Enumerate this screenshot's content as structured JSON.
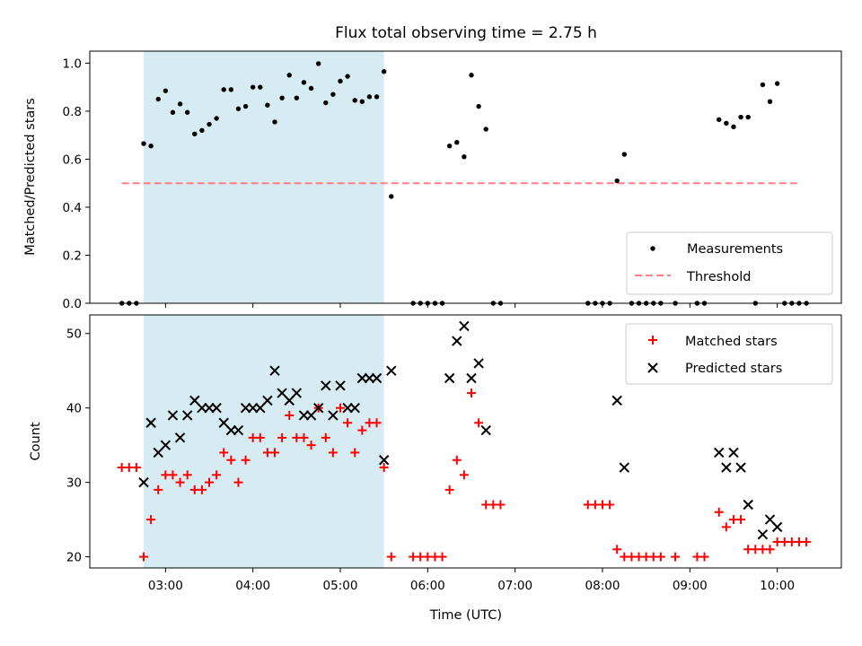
{
  "title": "Flux total observing time = 2.75 h",
  "colors": {
    "shade": "#add8e6",
    "measurement": "#000000",
    "threshold": "#ff8080",
    "matched": "#ff0000",
    "predicted": "#000000"
  },
  "chart_data": [
    {
      "type": "scatter",
      "ylabel": "Matched/Predicted stars",
      "xlim": [
        "02:08",
        "10:44"
      ],
      "ylim": [
        0,
        1.05
      ],
      "yticks": [
        "0.0",
        "0.2",
        "0.4",
        "0.6",
        "0.8",
        "1.0"
      ],
      "shaded_region": [
        "02:45",
        "05:30"
      ],
      "threshold": 0.5,
      "threshold_range": [
        "02:30",
        "10:15"
      ],
      "legend": {
        "position": "bottom-right",
        "measurements": "Measurements",
        "threshold": "Threshold"
      },
      "series": [
        {
          "name": "Measurements",
          "points": [
            [
              "02:30",
              0
            ],
            [
              "02:35",
              0
            ],
            [
              "02:40",
              0
            ],
            [
              "02:45",
              0.665
            ],
            [
              "02:50",
              0.655
            ],
            [
              "02:55",
              0.85
            ],
            [
              "03:00",
              0.885
            ],
            [
              "03:05",
              0.795
            ],
            [
              "03:10",
              0.83
            ],
            [
              "03:15",
              0.795
            ],
            [
              "03:20",
              0.705
            ],
            [
              "03:25",
              0.72
            ],
            [
              "03:30",
              0.745
            ],
            [
              "03:35",
              0.77
            ],
            [
              "03:40",
              0.89
            ],
            [
              "03:45",
              0.89
            ],
            [
              "03:50",
              0.81
            ],
            [
              "03:55",
              0.82
            ],
            [
              "04:00",
              0.9
            ],
            [
              "04:05",
              0.9
            ],
            [
              "04:10",
              0.825
            ],
            [
              "04:15",
              0.755
            ],
            [
              "04:20",
              0.855
            ],
            [
              "04:25",
              0.95
            ],
            [
              "04:30",
              0.855
            ],
            [
              "04:35",
              0.92
            ],
            [
              "04:40",
              0.895
            ],
            [
              "04:45",
              0.998
            ],
            [
              "04:50",
              0.835
            ],
            [
              "04:55",
              0.87
            ],
            [
              "05:00",
              0.925
            ],
            [
              "05:05",
              0.945
            ],
            [
              "05:10",
              0.845
            ],
            [
              "05:15",
              0.84
            ],
            [
              "05:20",
              0.86
            ],
            [
              "05:25",
              0.86
            ],
            [
              "05:30",
              0.965
            ],
            [
              "05:35",
              0.445
            ],
            [
              "05:50",
              0
            ],
            [
              "05:55",
              0
            ],
            [
              "06:00",
              0
            ],
            [
              "06:05",
              0
            ],
            [
              "06:10",
              0
            ],
            [
              "06:15",
              0.655
            ],
            [
              "06:20",
              0.67
            ],
            [
              "06:25",
              0.61
            ],
            [
              "06:30",
              0.95
            ],
            [
              "06:35",
              0.82
            ],
            [
              "06:40",
              0.725
            ],
            [
              "06:45",
              0
            ],
            [
              "06:50",
              0
            ],
            [
              "07:50",
              0
            ],
            [
              "07:55",
              0
            ],
            [
              "08:00",
              0
            ],
            [
              "08:05",
              0
            ],
            [
              "08:10",
              0.51
            ],
            [
              "08:15",
              0.62
            ],
            [
              "08:20",
              0
            ],
            [
              "08:25",
              0
            ],
            [
              "08:30",
              0
            ],
            [
              "08:35",
              0
            ],
            [
              "08:40",
              0
            ],
            [
              "08:50",
              0
            ],
            [
              "09:05",
              0
            ],
            [
              "09:10",
              0
            ],
            [
              "09:20",
              0.765
            ],
            [
              "09:25",
              0.75
            ],
            [
              "09:30",
              0.735
            ],
            [
              "09:35",
              0.775
            ],
            [
              "09:40",
              0.775
            ],
            [
              "09:45",
              0
            ],
            [
              "09:50",
              0.91
            ],
            [
              "09:55",
              0.84
            ],
            [
              "10:00",
              0.915
            ],
            [
              "10:05",
              0
            ],
            [
              "10:10",
              0
            ],
            [
              "10:15",
              0
            ],
            [
              "10:20",
              0
            ]
          ]
        }
      ]
    },
    {
      "type": "scatter",
      "xlabel": "Time (UTC)",
      "ylabel": "Count",
      "xlim": [
        "02:08",
        "10:44"
      ],
      "ylim": [
        18.5,
        52.5
      ],
      "yticks": [
        "20",
        "30",
        "40",
        "50"
      ],
      "xticks": [
        "03:00",
        "04:00",
        "05:00",
        "06:00",
        "07:00",
        "08:00",
        "09:00",
        "10:00"
      ],
      "shaded_region": [
        "02:45",
        "05:30"
      ],
      "legend": {
        "position": "top-right",
        "matched": "Matched stars",
        "predicted": "Predicted stars"
      },
      "series": [
        {
          "name": "Matched stars",
          "marker": "plus",
          "points": [
            [
              "02:30",
              32
            ],
            [
              "02:35",
              32
            ],
            [
              "02:40",
              32
            ],
            [
              "02:45",
              20
            ],
            [
              "02:50",
              25
            ],
            [
              "02:55",
              29
            ],
            [
              "03:00",
              31
            ],
            [
              "03:05",
              31
            ],
            [
              "03:10",
              30
            ],
            [
              "03:15",
              31
            ],
            [
              "03:20",
              29
            ],
            [
              "03:25",
              29
            ],
            [
              "03:30",
              30
            ],
            [
              "03:35",
              31
            ],
            [
              "03:40",
              34
            ],
            [
              "03:45",
              33
            ],
            [
              "03:50",
              30
            ],
            [
              "03:55",
              33
            ],
            [
              "04:00",
              36
            ],
            [
              "04:05",
              36
            ],
            [
              "04:10",
              34
            ],
            [
              "04:15",
              34
            ],
            [
              "04:20",
              36
            ],
            [
              "04:25",
              39
            ],
            [
              "04:30",
              36
            ],
            [
              "04:35",
              36
            ],
            [
              "04:40",
              35
            ],
            [
              "04:45",
              40
            ],
            [
              "04:50",
              36
            ],
            [
              "04:55",
              34
            ],
            [
              "05:00",
              40
            ],
            [
              "05:05",
              38
            ],
            [
              "05:10",
              34
            ],
            [
              "05:15",
              37
            ],
            [
              "05:20",
              38
            ],
            [
              "05:25",
              38
            ],
            [
              "05:30",
              32
            ],
            [
              "05:35",
              20
            ],
            [
              "05:50",
              20
            ],
            [
              "05:55",
              20
            ],
            [
              "06:00",
              20
            ],
            [
              "06:05",
              20
            ],
            [
              "06:10",
              20
            ],
            [
              "06:15",
              29
            ],
            [
              "06:20",
              33
            ],
            [
              "06:25",
              31
            ],
            [
              "06:30",
              42
            ],
            [
              "06:35",
              38
            ],
            [
              "06:40",
              27
            ],
            [
              "06:45",
              27
            ],
            [
              "06:50",
              27
            ],
            [
              "07:50",
              27
            ],
            [
              "07:55",
              27
            ],
            [
              "08:00",
              27
            ],
            [
              "08:05",
              27
            ],
            [
              "08:10",
              21
            ],
            [
              "08:15",
              20
            ],
            [
              "08:20",
              20
            ],
            [
              "08:25",
              20
            ],
            [
              "08:30",
              20
            ],
            [
              "08:35",
              20
            ],
            [
              "08:40",
              20
            ],
            [
              "08:50",
              20
            ],
            [
              "09:05",
              20
            ],
            [
              "09:10",
              20
            ],
            [
              "09:20",
              26
            ],
            [
              "09:25",
              24
            ],
            [
              "09:30",
              25
            ],
            [
              "09:35",
              25
            ],
            [
              "09:40",
              21
            ],
            [
              "09:45",
              21
            ],
            [
              "09:50",
              21
            ],
            [
              "09:55",
              21
            ],
            [
              "10:00",
              22
            ],
            [
              "10:05",
              22
            ],
            [
              "10:10",
              22
            ],
            [
              "10:15",
              22
            ],
            [
              "10:20",
              22
            ]
          ]
        },
        {
          "name": "Predicted stars",
          "marker": "x",
          "points": [
            [
              "02:45",
              30
            ],
            [
              "02:50",
              38
            ],
            [
              "02:55",
              34
            ],
            [
              "03:00",
              35
            ],
            [
              "03:05",
              39
            ],
            [
              "03:10",
              36
            ],
            [
              "03:15",
              39
            ],
            [
              "03:20",
              41
            ],
            [
              "03:25",
              40
            ],
            [
              "03:30",
              40
            ],
            [
              "03:35",
              40
            ],
            [
              "03:40",
              38
            ],
            [
              "03:45",
              37
            ],
            [
              "03:50",
              37
            ],
            [
              "03:55",
              40
            ],
            [
              "04:00",
              40
            ],
            [
              "04:05",
              40
            ],
            [
              "04:10",
              41
            ],
            [
              "04:15",
              45
            ],
            [
              "04:20",
              42
            ],
            [
              "04:25",
              41
            ],
            [
              "04:30",
              42
            ],
            [
              "04:35",
              39
            ],
            [
              "04:40",
              39
            ],
            [
              "04:45",
              40
            ],
            [
              "04:50",
              43
            ],
            [
              "04:55",
              39
            ],
            [
              "05:00",
              43
            ],
            [
              "05:05",
              40
            ],
            [
              "05:10",
              40
            ],
            [
              "05:15",
              44
            ],
            [
              "05:20",
              44
            ],
            [
              "05:25",
              44
            ],
            [
              "05:30",
              33
            ],
            [
              "05:35",
              45
            ],
            [
              "06:15",
              44
            ],
            [
              "06:20",
              49
            ],
            [
              "06:25",
              51
            ],
            [
              "06:30",
              44
            ],
            [
              "06:35",
              46
            ],
            [
              "06:40",
              37
            ],
            [
              "08:10",
              41
            ],
            [
              "08:15",
              32
            ],
            [
              "09:20",
              34
            ],
            [
              "09:25",
              32
            ],
            [
              "09:30",
              34
            ],
            [
              "09:35",
              32
            ],
            [
              "09:40",
              27
            ],
            [
              "09:50",
              23
            ],
            [
              "09:55",
              25
            ],
            [
              "10:00",
              24
            ]
          ]
        }
      ]
    }
  ]
}
